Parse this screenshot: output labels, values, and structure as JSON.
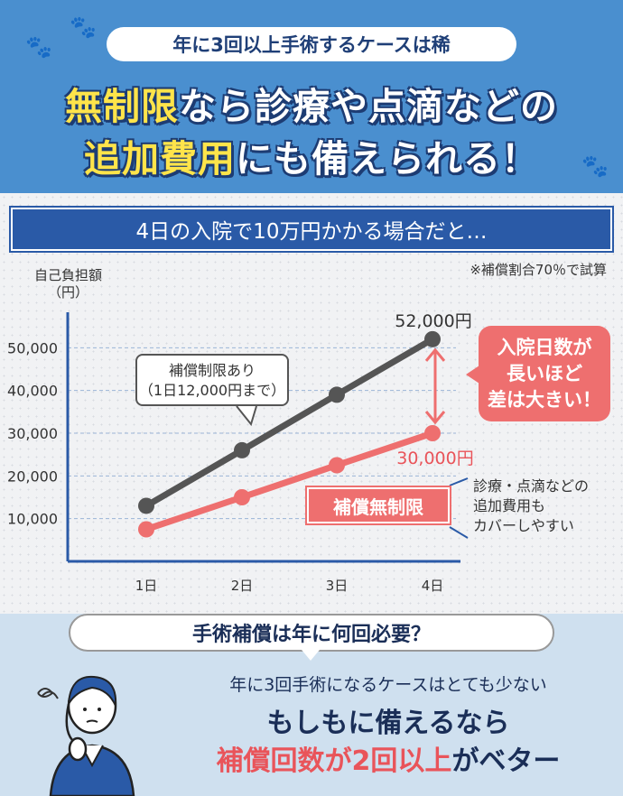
{
  "header": {
    "pill": "年に3回以上手術するケースは稀",
    "line1_highlight": "無制限",
    "line1_rest": "なら診療や点滴などの",
    "line2_highlight": "追加費用",
    "line2_rest": "にも備えられる！",
    "paw_icon": "paw-icon"
  },
  "banner": "4日の入院で10万円かかる場合だと…",
  "note": "※補償割合70％で試算",
  "y_axis_label_1": "自己負担額",
  "y_axis_label_2": "（円）",
  "callout_limited_1": "補償制限あり",
  "callout_limited_2": "（1日12,000円まで）",
  "value_top": "52,000円",
  "value_bottom": "30,000円",
  "bubble": [
    "入院日数が",
    "長いほど",
    "差は大きい！"
  ],
  "tag_unlimited": "補償無制限",
  "side_note": [
    "診療・点滴などの",
    "追加費用も",
    "カバーしやすい"
  ],
  "bottom": {
    "question": "手術補償は年に何回必要？",
    "line1": "年に3回手術になるケースはとても少ない",
    "line2": "もしもに備えるなら",
    "line3_red1": "補償回数",
    "line3_mid": "が2回以上",
    "line3_end": "がベター"
  },
  "colors": {
    "header": "#4a8fcf",
    "navy": "#2a5aa7",
    "red": "#ee6f6f",
    "gray_line": "#555555"
  },
  "chart_data": {
    "type": "line",
    "categories": [
      "1日",
      "2日",
      "3日",
      "4日"
    ],
    "series": [
      {
        "name": "補償制限あり",
        "values": [
          13000,
          26000,
          39000,
          52000
        ],
        "color": "#555555"
      },
      {
        "name": "補償無制限",
        "values": [
          7500,
          15000,
          22500,
          30000
        ],
        "color": "#ee6f6f"
      }
    ],
    "y_ticks": [
      "10,000",
      "20,000",
      "30,000",
      "40,000",
      "50,000"
    ],
    "y_tick_values": [
      10000,
      20000,
      30000,
      40000,
      50000
    ],
    "ylim": [
      0,
      60000
    ],
    "grid": true
  }
}
